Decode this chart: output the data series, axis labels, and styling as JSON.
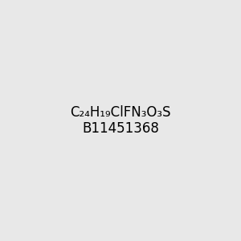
{
  "background_color": "#e8e8e8",
  "bond_color": "#000000",
  "atom_colors": {
    "N": "#0000ff",
    "O": "#ff0000",
    "F": "#ff00ff",
    "Cl": "#00aa00",
    "S": "#ff8800",
    "C": "#000000",
    "H": "#000000"
  },
  "title": "",
  "figsize": [
    3.0,
    3.0
  ],
  "dpi": 100
}
